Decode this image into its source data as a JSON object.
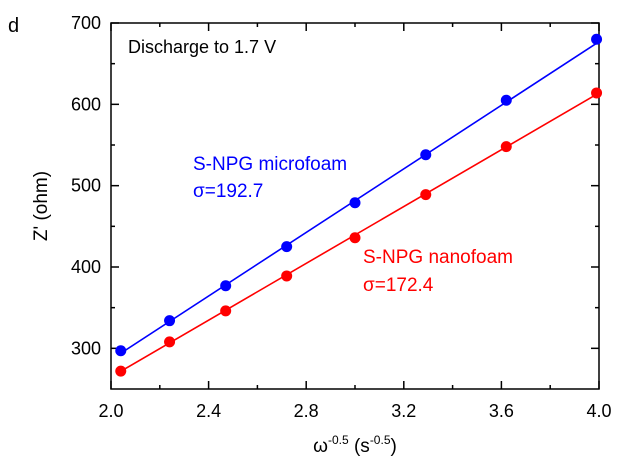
{
  "chart_data": {
    "type": "scatter",
    "panel_label": "d",
    "annotation": "Discharge to 1.7 V",
    "xlabel": {
      "base": "ω",
      "exp": "-0.5",
      "unit_open": " (s",
      "unit_exp": "-0.5",
      "unit_close": ")"
    },
    "ylabel": "Z' (ohm)",
    "xlim": [
      2.0,
      4.0
    ],
    "ylim": [
      250,
      700
    ],
    "x_ticks": [
      "2.0",
      "2.4",
      "2.8",
      "3.2",
      "3.6",
      "4.0"
    ],
    "x_tick_values": [
      2.0,
      2.4,
      2.8,
      3.2,
      3.6,
      4.0
    ],
    "y_ticks": [
      "300",
      "400",
      "500",
      "600",
      "700"
    ],
    "y_tick_values": [
      300,
      400,
      500,
      600,
      700
    ],
    "series": [
      {
        "name": "S-NPG microfoam",
        "sigma_label": "σ=192.7",
        "color": "#0000ff",
        "x": [
          2.04,
          2.24,
          2.47,
          2.72,
          3.0,
          3.29,
          3.62,
          3.99
        ],
        "y": [
          297,
          334,
          377,
          425,
          479,
          538,
          605,
          680
        ],
        "fit": {
          "x": [
            2.03,
            4.0
          ],
          "y": [
            292,
            677
          ]
        }
      },
      {
        "name": "S-NPG nanofoam",
        "sigma_label": "σ=172.4",
        "color": "#ff0000",
        "x": [
          2.04,
          2.24,
          2.47,
          2.72,
          3.0,
          3.29,
          3.62,
          3.99
        ],
        "y": [
          272,
          308,
          346,
          389,
          436,
          489,
          548,
          614
        ],
        "fit": {
          "x": [
            2.03,
            4.0
          ],
          "y": [
            270,
            614
          ]
        }
      }
    ]
  }
}
